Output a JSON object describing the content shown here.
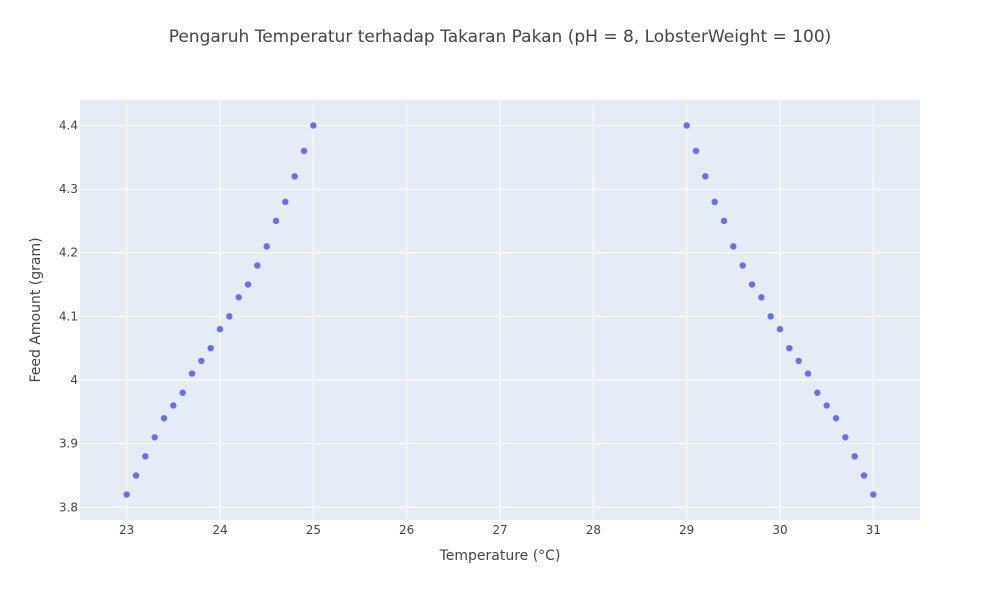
{
  "chart_data": {
    "type": "scatter",
    "title": "Pengaruh Temperatur terhadap Takaran Pakan (pH = 8, LobsterWeight = 100)",
    "xlabel": "Temperature (°C)",
    "ylabel": "Feed Amount (gram)",
    "xlim": [
      22.5,
      31.5
    ],
    "ylim": [
      3.78,
      4.44
    ],
    "x_ticks": [
      23,
      24,
      25,
      26,
      27,
      28,
      29,
      30,
      31
    ],
    "y_ticks": [
      3.8,
      3.9,
      4,
      4.1,
      4.2,
      4.3,
      4.4
    ],
    "grid": true,
    "series": [
      {
        "color": "#636efa",
        "x": [
          23.0,
          23.1,
          23.2,
          23.3,
          23.4,
          23.5,
          23.6,
          23.7,
          23.8,
          23.9,
          24.0,
          24.1,
          24.2,
          24.3,
          24.4,
          24.5,
          24.6,
          24.7,
          24.8,
          24.9,
          25.0,
          29.0,
          29.1,
          29.2,
          29.3,
          29.4,
          29.5,
          29.6,
          29.7,
          29.8,
          29.9,
          30.0,
          30.1,
          30.2,
          30.3,
          30.4,
          30.5,
          30.6,
          30.7,
          30.8,
          30.9,
          31.0
        ],
        "y": [
          3.82,
          3.85,
          3.88,
          3.91,
          3.94,
          3.96,
          3.98,
          4.01,
          4.03,
          4.05,
          4.08,
          4.1,
          4.13,
          4.15,
          4.18,
          4.21,
          4.25,
          4.28,
          4.32,
          4.36,
          4.4,
          4.4,
          4.36,
          4.32,
          4.28,
          4.25,
          4.21,
          4.18,
          4.15,
          4.13,
          4.1,
          4.08,
          4.05,
          4.03,
          4.01,
          3.98,
          3.96,
          3.94,
          3.91,
          3.88,
          3.85,
          3.82
        ]
      }
    ]
  },
  "colors": {
    "plot_background": "#e5ecf6",
    "gridline": "#ffffff",
    "marker": "#636efa"
  }
}
